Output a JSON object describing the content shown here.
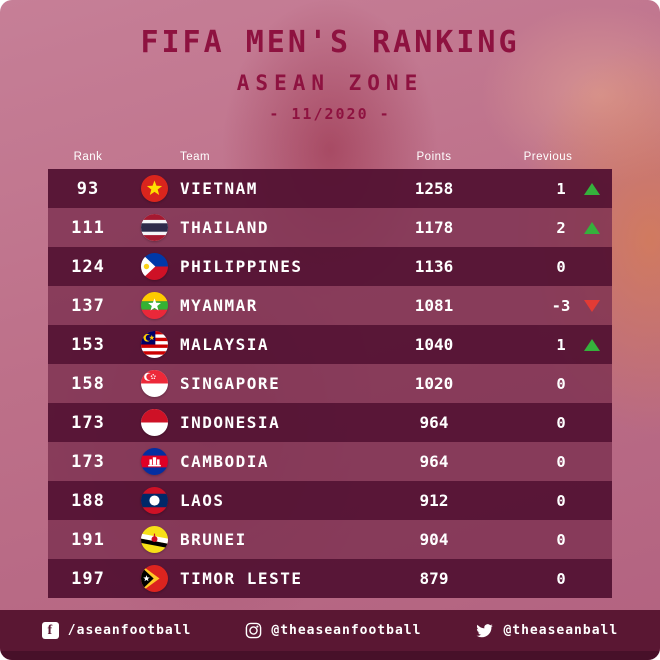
{
  "header": {
    "title": "FIFA MEN'S RANKING",
    "subtitle": "ASEAN ZONE",
    "date": "- 11/2020 -"
  },
  "chart_data": {
    "type": "table",
    "title": "FIFA MEN'S RANKING",
    "subtitle": "ASEAN ZONE 11/2020",
    "columns": [
      "Rank",
      "Team",
      "Points",
      "Previous"
    ],
    "rows": [
      {
        "rank": 93,
        "flag": "vietnam",
        "team": "VIETNAM",
        "points": 1258,
        "previous": 1
      },
      {
        "rank": 111,
        "flag": "thailand",
        "team": "THAILAND",
        "points": 1178,
        "previous": 2
      },
      {
        "rank": 124,
        "flag": "philippines",
        "team": "PHILIPPINES",
        "points": 1136,
        "previous": 0
      },
      {
        "rank": 137,
        "flag": "myanmar",
        "team": "MYANMAR",
        "points": 1081,
        "previous": -3
      },
      {
        "rank": 153,
        "flag": "malaysia",
        "team": "MALAYSIA",
        "points": 1040,
        "previous": 1
      },
      {
        "rank": 158,
        "flag": "singapore",
        "team": "SINGAPORE",
        "points": 1020,
        "previous": 0
      },
      {
        "rank": 173,
        "flag": "indonesia",
        "team": "INDONESIA",
        "points": 964,
        "previous": 0
      },
      {
        "rank": 173,
        "flag": "cambodia",
        "team": "CAMBODIA",
        "points": 964,
        "previous": 0
      },
      {
        "rank": 188,
        "flag": "laos",
        "team": "LAOS",
        "points": 912,
        "previous": 0
      },
      {
        "rank": 191,
        "flag": "brunei",
        "team": "BRUNEI",
        "points": 904,
        "previous": 0
      },
      {
        "rank": 197,
        "flag": "timor-leste",
        "team": "TIMOR LESTE",
        "points": 879,
        "previous": 0
      }
    ]
  },
  "footer": {
    "items": [
      {
        "icon": "facebook-icon",
        "handle": "/aseanfootball"
      },
      {
        "icon": "instagram-icon",
        "handle": "@theaseanfootball"
      },
      {
        "icon": "twitter-icon",
        "handle": "@theaseanball"
      }
    ]
  },
  "colors": {
    "title_maroon": "#8e1240",
    "row_dark": "#531233",
    "row_light": "#7d3150",
    "bar_maroon": "#5a1733",
    "strip_dark": "#471029",
    "up_green": "#35b13c",
    "down_red": "#e23b35",
    "bg_pink": "#bd7089"
  }
}
